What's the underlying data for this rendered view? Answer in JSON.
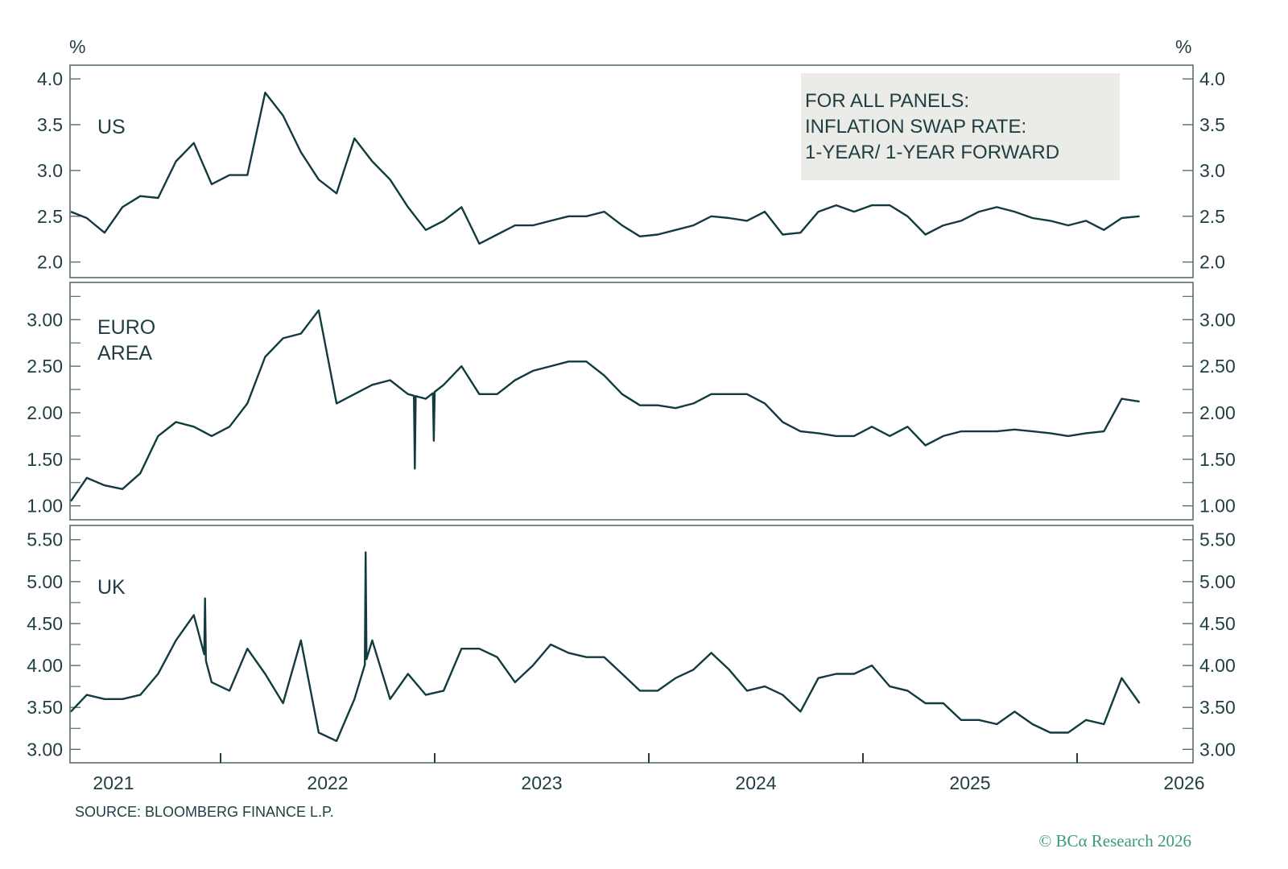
{
  "chart_data": [
    {
      "type": "line",
      "panel_label": "US",
      "unit_left": "%",
      "unit_right": "%",
      "ylim": [
        1.83,
        4.15
      ],
      "yticks": [
        "4.0",
        "3.5",
        "3.0",
        "2.5",
        "2.0"
      ],
      "minor_ticks": [],
      "grid": false,
      "series": [
        {
          "name": "US",
          "dates": [
            "2021-04",
            "2021-05",
            "2021-06",
            "2021-07",
            "2021-08",
            "2021-09",
            "2021-10",
            "2021-11",
            "2021-12",
            "2022-01",
            "2022-02",
            "2022-03",
            "2022-04",
            "2022-05",
            "2022-06",
            "2022-07",
            "2022-08",
            "2022-09",
            "2022-10",
            "2022-11",
            "2022-12",
            "2023-01",
            "2023-02",
            "2023-03",
            "2023-04",
            "2023-05",
            "2023-06",
            "2023-07",
            "2023-08",
            "2023-09",
            "2023-10",
            "2023-11",
            "2023-12",
            "2024-01",
            "2024-02",
            "2024-03",
            "2024-04",
            "2024-05",
            "2024-06",
            "2024-07",
            "2024-08",
            "2024-09",
            "2024-10",
            "2024-11",
            "2024-12",
            "2025-01",
            "2025-02",
            "2025-03",
            "2025-04",
            "2025-05",
            "2025-06",
            "2025-07",
            "2025-08",
            "2025-09",
            "2025-10",
            "2025-11",
            "2025-12",
            "2026-01",
            "2026-02",
            "2026-03",
            "2026-04"
          ],
          "values": [
            2.55,
            2.48,
            2.32,
            2.6,
            2.72,
            2.7,
            3.1,
            3.3,
            2.85,
            2.95,
            2.95,
            3.85,
            3.6,
            3.2,
            2.9,
            2.75,
            3.35,
            3.1,
            2.9,
            2.6,
            2.35,
            2.45,
            2.6,
            2.2,
            2.3,
            2.4,
            2.4,
            2.45,
            2.5,
            2.5,
            2.55,
            2.4,
            2.28,
            2.3,
            2.35,
            2.4,
            2.5,
            2.48,
            2.45,
            2.55,
            2.3,
            2.32,
            2.55,
            2.62,
            2.55,
            2.62,
            2.62,
            2.5,
            2.3,
            2.4,
            2.45,
            2.55,
            2.6,
            2.55,
            2.48,
            2.45,
            2.4,
            2.45,
            2.35,
            2.48,
            2.5
          ],
          "extra_points": []
        }
      ]
    },
    {
      "type": "line",
      "panel_label": "EURO AREA",
      "ylim": [
        0.85,
        3.4
      ],
      "yticks": [
        "3.00",
        "2.50",
        "2.00",
        "1.50",
        "1.00"
      ],
      "minor_ticks": [
        3.25,
        2.75,
        2.25,
        1.75,
        1.25
      ],
      "grid": false,
      "series": [
        {
          "name": "EURO AREA",
          "dates": [
            "2021-04",
            "2021-05",
            "2021-06",
            "2021-07",
            "2021-08",
            "2021-09",
            "2021-10",
            "2021-11",
            "2021-12",
            "2022-01",
            "2022-02",
            "2022-03",
            "2022-04",
            "2022-05",
            "2022-06",
            "2022-07",
            "2022-08",
            "2022-09",
            "2022-10",
            "2022-11",
            "2022-12",
            "2023-01",
            "2023-02",
            "2023-03",
            "2023-04",
            "2023-05",
            "2023-06",
            "2023-07",
            "2023-08",
            "2023-09",
            "2023-10",
            "2023-11",
            "2023-12",
            "2024-01",
            "2024-02",
            "2024-03",
            "2024-04",
            "2024-05",
            "2024-06",
            "2024-07",
            "2024-08",
            "2024-09",
            "2024-10",
            "2024-11",
            "2024-12",
            "2025-01",
            "2025-02",
            "2025-03",
            "2025-04",
            "2025-05",
            "2025-06",
            "2025-07",
            "2025-08",
            "2025-09",
            "2025-10",
            "2025-11",
            "2025-12",
            "2026-01",
            "2026-02",
            "2026-03",
            "2026-04"
          ],
          "values": [
            1.05,
            1.3,
            1.22,
            1.18,
            1.35,
            1.75,
            1.9,
            1.85,
            1.75,
            1.85,
            2.1,
            2.6,
            2.8,
            2.85,
            3.1,
            2.1,
            2.2,
            2.3,
            2.35,
            2.2,
            2.15,
            2.3,
            2.5,
            2.2,
            2.2,
            2.35,
            2.45,
            2.5,
            2.55,
            2.55,
            2.4,
            2.2,
            2.08,
            2.08,
            2.05,
            2.1,
            2.2,
            2.2,
            2.2,
            2.1,
            1.9,
            1.8,
            1.78,
            1.75,
            1.75,
            1.85,
            1.75,
            1.85,
            1.65,
            1.75,
            1.8,
            1.8,
            1.8,
            1.82,
            1.8,
            1.78,
            1.75,
            1.78,
            1.8,
            2.15,
            2.12
          ],
          "extra_points": [
            [
              "2022-11-28",
              1.4
            ],
            [
              "2022-12-30",
              1.7
            ]
          ]
        }
      ]
    },
    {
      "type": "line",
      "panel_label": "UK",
      "ylim": [
        2.84,
        5.67
      ],
      "yticks": [
        "5.50",
        "5.00",
        "4.50",
        "4.00",
        "3.50",
        "3.00"
      ],
      "minor_ticks": [
        5.25,
        4.75,
        4.25,
        3.75,
        3.25
      ],
      "grid": false,
      "xticks": [
        "2021",
        "2022",
        "2023",
        "2024",
        "2025",
        "2026"
      ],
      "series": [
        {
          "name": "UK",
          "dates": [
            "2021-04",
            "2021-05",
            "2021-06",
            "2021-07",
            "2021-08",
            "2021-09",
            "2021-10",
            "2021-11",
            "2021-12",
            "2022-01",
            "2022-02",
            "2022-03",
            "2022-04",
            "2022-05",
            "2022-06",
            "2022-07",
            "2022-08",
            "2022-09",
            "2022-10",
            "2022-11",
            "2022-12",
            "2023-01",
            "2023-02",
            "2023-03",
            "2023-04",
            "2023-05",
            "2023-06",
            "2023-07",
            "2023-08",
            "2023-09",
            "2023-10",
            "2023-11",
            "2023-12",
            "2024-01",
            "2024-02",
            "2024-03",
            "2024-04",
            "2024-05",
            "2024-06",
            "2024-07",
            "2024-08",
            "2024-09",
            "2024-10",
            "2024-11",
            "2024-12",
            "2025-01",
            "2025-02",
            "2025-03",
            "2025-04",
            "2025-05",
            "2025-06",
            "2025-07",
            "2025-08",
            "2025-09",
            "2025-10",
            "2025-11",
            "2025-12",
            "2026-01",
            "2026-02",
            "2026-03",
            "2026-04"
          ],
          "values": [
            3.45,
            3.65,
            3.6,
            3.6,
            3.65,
            3.9,
            4.3,
            4.6,
            3.8,
            3.7,
            4.2,
            3.9,
            3.55,
            4.3,
            3.2,
            3.1,
            3.6,
            4.3,
            3.6,
            3.9,
            3.65,
            3.7,
            4.2,
            4.2,
            4.1,
            3.8,
            4.0,
            4.25,
            4.15,
            4.1,
            4.1,
            3.9,
            3.7,
            3.7,
            3.85,
            3.95,
            4.15,
            3.95,
            3.7,
            3.75,
            3.65,
            3.45,
            3.85,
            3.9,
            3.9,
            4.0,
            3.75,
            3.7,
            3.55,
            3.55,
            3.35,
            3.35,
            3.3,
            3.45,
            3.3,
            3.2,
            3.2,
            3.35,
            3.3,
            3.85,
            3.55
          ],
          "extra_points": [
            [
              "2021-12-05",
              4.8
            ],
            [
              "2022-09-05",
              5.35
            ]
          ]
        }
      ]
    }
  ],
  "note": {
    "lines": [
      "FOR ALL PANELS:",
      "INFLATION SWAP RATE:",
      "1-YEAR/ 1-YEAR FORWARD"
    ],
    "background": "#ebebe7"
  },
  "source": "SOURCE: BLOOMBERG FINANCE L.P.",
  "copyright": "© BCα Research 2026",
  "colors": {
    "line": "#123a3f",
    "text": "#1f3d42",
    "frame": "#5d6d6e",
    "brand": "#3a9a78"
  }
}
